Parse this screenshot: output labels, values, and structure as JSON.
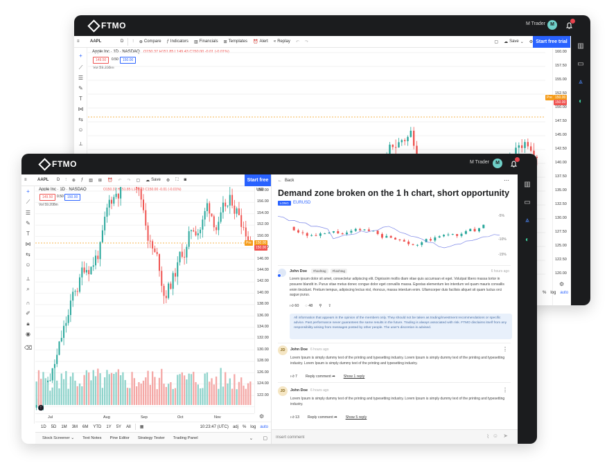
{
  "brand": {
    "name": "FTMO"
  },
  "user": {
    "name": "M Trader",
    "initial": "M"
  },
  "toolbar": {
    "symbol": "AAPL",
    "interval": "D",
    "compare": "Compare",
    "indicators": "Indicators",
    "financials": "Financials",
    "templates": "Templates",
    "alert": "Alert",
    "replay": "Replay",
    "save": "Save",
    "start_free_trial": "Start free trial",
    "start_free_short": "Start free"
  },
  "legend": {
    "title": "Apple Inc · 1D · NASDAQ",
    "ohlc_back": "O150.37 H151.85 L149.43 C150.00 -0.01 (-0.01%)",
    "ohlc_front": "O150.37 H151.85 L149.43 C150.00 -0.01 (-0.01%)",
    "bid": "149.50",
    "spread": "0.50",
    "ask": "150.00",
    "volume": "Vol 59.208m"
  },
  "price_axis_back": [
    "160.00",
    "157.50",
    "155.00",
    "152.50",
    "150.00",
    "147.50",
    "145.00",
    "142.50",
    "140.00",
    "137.50",
    "135.00",
    "132.50",
    "130.00",
    "127.50",
    "125.00",
    "122.50",
    "120.00"
  ],
  "price_axis_front": [
    "158.00",
    "156.00",
    "154.00",
    "152.00",
    "150.00",
    "148.00",
    "146.00",
    "144.00",
    "142.00",
    "140.00",
    "138.00",
    "136.00",
    "134.00",
    "132.00",
    "130.00",
    "128.00",
    "126.00",
    "124.00",
    "122.00"
  ],
  "price_tags": {
    "pre": "Pre",
    "pre_price": "150.00",
    "last_price": "150.00",
    "currency": "USD"
  },
  "time_axis": [
    "Jul",
    "Aug",
    "Sep",
    "Oct",
    "Nov"
  ],
  "timeframes": [
    "1D",
    "5D",
    "1M",
    "3M",
    "6M",
    "YTD",
    "1Y",
    "5Y",
    "All"
  ],
  "clock": "10:23:47 (UTC)",
  "scale_opts": {
    "adj": "adj",
    "pct": "%",
    "log": "log",
    "auto": "auto"
  },
  "bottom_tabs": [
    "Stock Screener",
    "Text Notes",
    "Pine Editor",
    "Strategy Tester",
    "Trading Panel"
  ],
  "idea": {
    "back": "Back",
    "title": "Demand zone broken on the 1 h chart, short opportunity",
    "badge": "LONG",
    "pair": "EURUSD",
    "chart_pct": [
      "-5%",
      "-10%",
      "-15%"
    ],
    "author": "John Doe",
    "hashtags": [
      "#hashtag",
      "#hashtag"
    ],
    "time": "6 hours ago",
    "body": "Lorem ipsum dolor sit amet, consectetur adipiscing elit. Dignissim mollis diam vitae quis accumsan et eget. Volutpat libero massa tortor in posuere blandit in. Purus vitae metus donec congue dolor eget convallis massa. Egestas elementum leo interdum vel quam mauris convallis enim tincidunt. Pretium tempus, adipiscing lectus nisl, rhoncus, massa interdum enim. Ullamcorper duis facilisis aliquet sit quam luctus orci augue purus.",
    "likes": "60",
    "comments": "48",
    "disclaimer": "All information that appears in the opinion of the members only. They should not be taken as trading/investment recommendations or specific advice. Past performance never guarantees the same results in the future. Trading is always associated with risk. FTMO disclaims itself from any responsibility arising from messages posted by other people. The user's discretion is advised."
  },
  "comments": [
    {
      "initials": "JD",
      "author": "John Doe",
      "time": "6 hours ago",
      "text": "Lorem Ipsum is simply dummy text of the printing and typesetting industry. Lorem Ipsum is simply dummy text of the printing and typesetting industry. Lorem Ipsum is simply dummy text of the printing and typesetting industry.",
      "likes": "7",
      "reply": "Reply comment",
      "show": "Show 1 reply"
    },
    {
      "initials": "JD",
      "author": "John Doe",
      "time": "6 hours ago",
      "text": "Lorem Ipsum is simply dummy text of the printing and typesetting industry. Lorem Ipsum is simply dummy text of the printing and typesetting industry.",
      "likes": "13",
      "reply": "Reply comment",
      "show": "Show 5 reply"
    }
  ],
  "comment_input": {
    "placeholder": "Insert comment"
  },
  "colors": {
    "bull": "#26a69a",
    "bear": "#ef5350",
    "accent": "#2962ff",
    "dark": "#1b1c1e",
    "pre": "#f59c1a"
  }
}
